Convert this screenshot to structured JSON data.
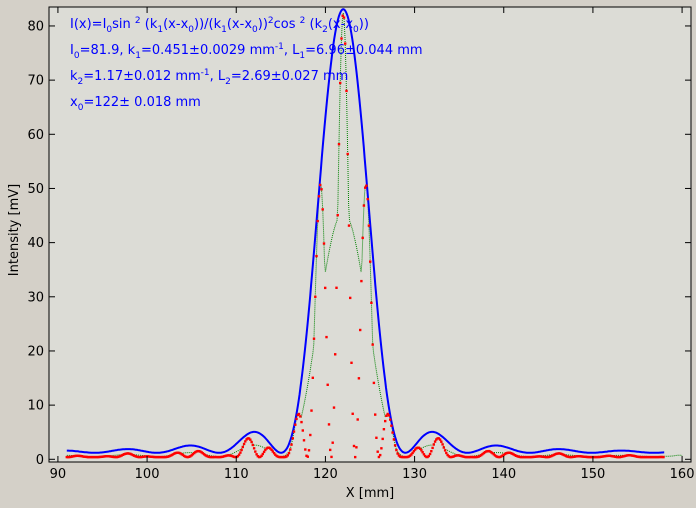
{
  "chart_data": {
    "type": "scatter",
    "xlabel": "X [mm]",
    "ylabel": "Intensity [mV]",
    "xlim": [
      89,
      161
    ],
    "ylim": [
      -0.5,
      83.5
    ],
    "x_ticks": [
      90,
      100,
      110,
      120,
      130,
      140,
      150,
      160
    ],
    "y_ticks": [
      0,
      10,
      20,
      30,
      40,
      50,
      60,
      70,
      80
    ],
    "grid": false,
    "fit_params": {
      "I0": 81.9,
      "k1": 0.451,
      "L1": 6.96,
      "k2": 1.17,
      "L2": 2.69,
      "x0": 122
    },
    "annotations": {
      "line1": {
        "a": "I(x)=I",
        "b": "0",
        "c": "sin ",
        "d": "2",
        "e": " (k",
        "f": "1",
        "g": "(x-x",
        "h": "0",
        "i": "))/(k",
        "j": "1",
        "k": "(x-x",
        "l": "0",
        "m": "))",
        "n": "2",
        "o": "cos ",
        "p": "2",
        "q": " (k",
        "r": "2",
        "s": "(x-x",
        "t": "0",
        "u": "))"
      },
      "line2": {
        "a": "I",
        "b": "0",
        "c": "=81.9,  k",
        "d": "1",
        "e": "=0.451±0.0029 mm",
        "f": "-1",
        "g": ",   L",
        "h": "1",
        "i": "=6.96±0.044 mm"
      },
      "line3": {
        "a": "k",
        "b": "2",
        "c": "=1.17±0.012 mm",
        "d": "-1",
        "e": ",   L",
        "f": "2",
        "g": "=2.69±0.027 mm"
      },
      "line4": {
        "a": "x",
        "b": "0",
        "c": "=122±   0.018 mm"
      }
    },
    "series": [
      {
        "name": "",
        "kind": "line",
        "color": "#0000ff",
        "x_range": [
          91,
          158
        ]
      },
      {
        "name": "",
        "kind": "line",
        "color": "#008000",
        "x_range": [
          91,
          160
        ]
      },
      {
        "name": "",
        "kind": "points",
        "color": "#ff0000",
        "x_range": [
          91,
          158
        ]
      }
    ]
  }
}
